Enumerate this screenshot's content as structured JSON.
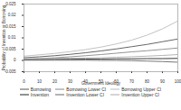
{
  "chart_data": {
    "type": "line",
    "x_label": "Government Ideology",
    "y_label": "Probability of Invention or Borrowing",
    "x": [
      0,
      10,
      20,
      30,
      40,
      50,
      60,
      70,
      80,
      90,
      100
    ],
    "xlim": [
      0,
      100
    ],
    "xticks": [
      0,
      10,
      20,
      30,
      40,
      50,
      60,
      70,
      80,
      90,
      100
    ],
    "ylim": [
      -0.005,
      0.025
    ],
    "yticks": [
      -0.005,
      0,
      0.005,
      0.01,
      0.015,
      0.02,
      0.025
    ],
    "legend": "bottom",
    "series": [
      {
        "name": "Borrowing",
        "color": "#555555",
        "line_style": "solid",
        "values": [
          0.0012,
          0.0016,
          0.0021,
          0.0027,
          0.0034,
          0.0042,
          0.0051,
          0.0061,
          0.0071,
          0.0083,
          0.0095
        ]
      },
      {
        "name": "Borrowing Lower CI",
        "color": "#888888",
        "line_style": "solid",
        "values": [
          0.0005,
          0.0008,
          0.0012,
          0.0016,
          0.0021,
          0.0026,
          0.0032,
          0.0038,
          0.0043,
          0.0049,
          0.0055
        ]
      },
      {
        "name": "Borrowing Upper CI",
        "color": "#bbbbbb",
        "line_style": "solid",
        "values": [
          0.0019,
          0.0025,
          0.0031,
          0.0039,
          0.0048,
          0.0059,
          0.0073,
          0.009,
          0.0112,
          0.014,
          0.0175
        ]
      },
      {
        "name": "Invention",
        "color": "#222222",
        "line_style": "solid",
        "values": [
          0.0004,
          0.0004,
          0.0005,
          0.0005,
          0.0006,
          0.0006,
          0.0007,
          0.0007,
          0.0008,
          0.0008,
          0.0009
        ]
      },
      {
        "name": "Invention Lower CI",
        "color": "#666666",
        "line_style": "solid",
        "values": [
          0.0001,
          0.0001,
          0.0001,
          0.0001,
          0.0001,
          0.0,
          0.0,
          -0.0001,
          -0.0003,
          -0.0005,
          -0.0008
        ]
      },
      {
        "name": "Invention Upper CI",
        "color": "#aaaaaa",
        "line_style": "solid",
        "values": [
          0.0007,
          0.0008,
          0.0009,
          0.001,
          0.0011,
          0.0012,
          0.0014,
          0.0016,
          0.0019,
          0.0022,
          0.0026
        ]
      }
    ]
  }
}
